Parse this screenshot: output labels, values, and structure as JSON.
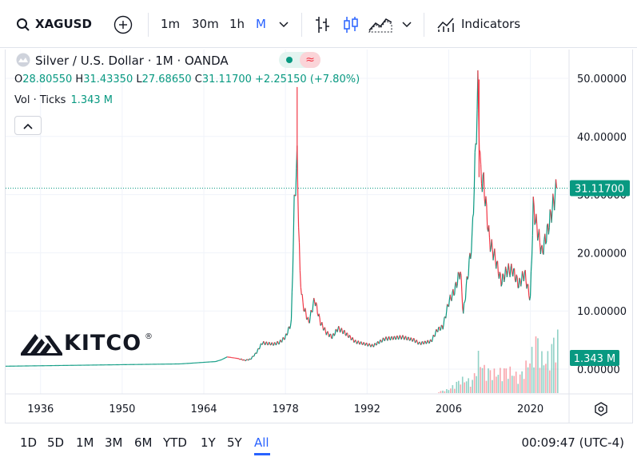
{
  "toolbar": {
    "symbol": "XAGUSD",
    "intervals": [
      "1m",
      "30m",
      "1h",
      "M"
    ],
    "active_interval": "M",
    "indicators_label": "Indicators"
  },
  "legend": {
    "title": "Silver / U.S. Dollar · 1M · OANDA",
    "ohlc": {
      "open_label": "O",
      "open": "28.80550",
      "high_label": "H",
      "high": "31.43350",
      "low_label": "L",
      "low": "27.68650",
      "close_label": "C",
      "close": "31.11700",
      "change": "+2.25150 (+7.80%)"
    },
    "volume_label": "Vol · Ticks",
    "volume_value": "1.343 M"
  },
  "price_label": "31.11700",
  "volume_label_badge": "1.343 M",
  "brand": "KITCO",
  "ranges": [
    "1D",
    "5D",
    "1M",
    "3M",
    "6M",
    "YTD",
    "1Y",
    "5Y",
    "All"
  ],
  "active_range": "All",
  "clock": "00:09:47 (UTC-4)",
  "colors": {
    "up": "#089981",
    "down": "#f23645",
    "accent": "#2962ff"
  },
  "chart_data": {
    "type": "line",
    "x": [
      1930,
      1960,
      1966,
      1967,
      1968,
      1970,
      1971,
      1972,
      1973,
      1974,
      1975,
      1976,
      1977,
      1978,
      1979,
      1979.5,
      1980,
      1980.5,
      1981,
      1982,
      1983,
      1984,
      1985,
      1986,
      1987,
      1988,
      1990,
      1993,
      1995,
      1998,
      2000,
      2001,
      2003,
      2004,
      2005,
      2006,
      2007,
      2008,
      2008.5,
      2009,
      2010,
      2011,
      2011.5,
      2012,
      2013,
      2014,
      2015,
      2016,
      2017,
      2018,
      2019,
      2020,
      2020.5,
      2021,
      2022,
      2023,
      2024,
      2024.5
    ],
    "y": [
      0.5,
      0.9,
      1.3,
      1.6,
      2.1,
      1.8,
      1.5,
      1.7,
      2.8,
      4.5,
      4.4,
      4.3,
      4.6,
      5.5,
      8.0,
      28.0,
      36.0,
      16.0,
      11.0,
      8.0,
      12.0,
      8.0,
      6.3,
      5.5,
      7.0,
      6.4,
      4.7,
      4.0,
      5.2,
      5.5,
      5.0,
      4.4,
      4.8,
      6.7,
      7.3,
      11.5,
      13.5,
      17.0,
      9.5,
      14.0,
      22.0,
      48.0,
      33.0,
      32.0,
      22.0,
      19.0,
      15.0,
      17.0,
      17.0,
      14.5,
      16.5,
      12.0,
      28.0,
      25.0,
      20.0,
      24.0,
      28.8,
      31.1
    ],
    "y_ticks": [
      "50.00000",
      "40.00000",
      "30.00000",
      "20.00000",
      "10.00000",
      "0.00000"
    ],
    "x_ticks": [
      "1936",
      "1950",
      "1964",
      "1978",
      "1992",
      "2006",
      "2020"
    ],
    "ylim": [
      0,
      50
    ],
    "current_price": 31.117,
    "volume_series": {
      "x": [
        2004,
        2006,
        2008,
        2010,
        2011,
        2012,
        2014,
        2016,
        2018,
        2020,
        2021,
        2022,
        2023,
        2024
      ],
      "values": [
        0.03,
        0.1,
        0.35,
        0.3,
        0.9,
        0.6,
        0.5,
        0.6,
        0.4,
        0.9,
        1.4,
        0.8,
        0.9,
        1.343
      ]
    }
  }
}
